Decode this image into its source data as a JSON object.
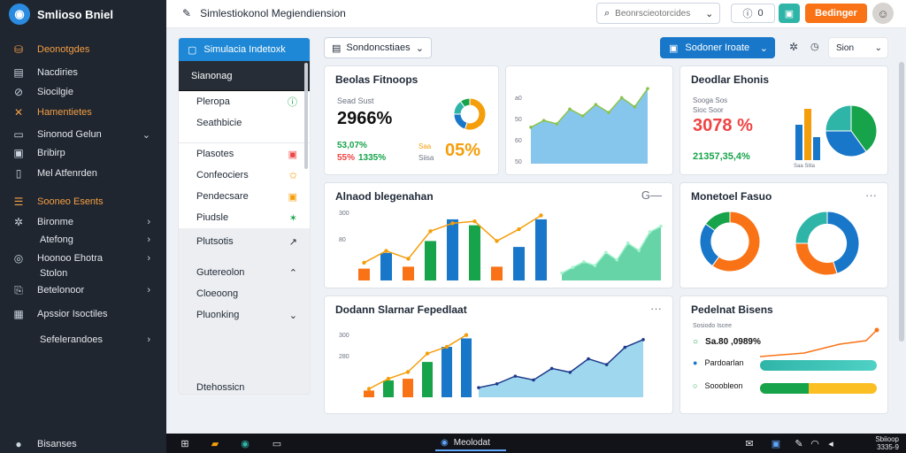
{
  "app": {
    "brand": "Smlioso Bniel",
    "title": "Simlestiokonol Megiendiension"
  },
  "sidebar": {
    "items": [
      {
        "label": "Deonotgdes",
        "icon": "database-icon"
      },
      {
        "label": "Nacdiries",
        "icon": "layers-icon"
      },
      {
        "label": "Siocilgie",
        "icon": "link-icon"
      },
      {
        "label": "Hamentietes",
        "icon": "tools-icon"
      },
      {
        "label": "Sinonod Gelun",
        "icon": "table-icon"
      },
      {
        "label": "Bribirp",
        "icon": "image-icon"
      },
      {
        "label": "Mel Atfenrden",
        "icon": "tablet-icon"
      },
      {
        "label": "Sooneo Esents",
        "icon": "list-icon"
      },
      {
        "label": "Bironme",
        "icon": "settings-icon"
      },
      {
        "label": "Atefong",
        "icon": ""
      },
      {
        "label": "Hoonoo Ehotra",
        "icon": "circle-icon"
      },
      {
        "label": "Stolon",
        "icon": ""
      },
      {
        "label": "Betelonoor",
        "icon": "bookmark-icon"
      },
      {
        "label": "Apssior Isoctiles",
        "icon": "grid-icon"
      },
      {
        "label": "Sefelerandoes",
        "icon": ""
      },
      {
        "label": "Bisanses",
        "icon": "user-icon"
      }
    ]
  },
  "topbar": {
    "search_placeholder": "Beonrscieotorcides",
    "notif_label": "0",
    "primary_label": "Bedinger"
  },
  "panel": {
    "header": "Simulacia Indetoxk",
    "dark_item": "Sianonag",
    "rows": [
      "Pleropa",
      "Seathbicie"
    ],
    "list": [
      "Plasotes",
      "Confeociers",
      "Pendecsare",
      "Piudsle"
    ],
    "grey_row": "Plutsotis",
    "bottom": [
      "Gutereolon",
      "Cloeoong",
      "Pluonking"
    ],
    "footer": "Dtehossicn"
  },
  "toolbar": {
    "filter": "Sondoncstiaes",
    "blue_select": "Sodoner Iroate",
    "right_select": "Sion"
  },
  "cards": {
    "c1": {
      "title": "Beolas Fitnoops",
      "sub": "Sead Sust",
      "big": "2966%",
      "green_line": "53,07%",
      "orange_line": "55%",
      "grey_line": "1335%",
      "orange_big": "05%",
      "small1": "Saa",
      "small2": "Siisa"
    },
    "c2": {
      "y1": "a0",
      "y2": "50",
      "y3": "60",
      "y4": "50"
    },
    "c3": {
      "title": "Deodlar Ehonis",
      "sub1": "Sooga Sos",
      "sub2": "Sioc Soor",
      "big": "3078",
      "pct": "%",
      "green": "21357,35,4%",
      "sub3": "Saa Sitia"
    },
    "c4": {
      "title": "Alnaod blegenahan",
      "y1": "300",
      "y2": "80",
      "more": "G—"
    },
    "c5": {
      "title": "Monetoel Fasuo"
    },
    "c6": {
      "title": "Dodann Slarnar Fepedlaat",
      "y1": "300",
      "y2": "280"
    },
    "c7": {
      "title": "Pedelnat Bisens",
      "sub": "Sosiodo Iscee",
      "r1": "Sa.80 ,0989%",
      "r2": "Pardoarlan",
      "r3": "Sooobleon"
    }
  },
  "chart_data": [
    {
      "type": "area",
      "series": [
        {
          "values": [
            32,
            38,
            35,
            48,
            42,
            52,
            45,
            58,
            50,
            66
          ]
        }
      ]
    },
    {
      "type": "bar",
      "values": [
        12,
        28,
        14,
        40,
        62,
        56,
        14,
        34,
        62
      ],
      "line": [
        18,
        30,
        22,
        50,
        58,
        60,
        40,
        52,
        66
      ]
    },
    {
      "type": "bar",
      "values": [
        8,
        20,
        22,
        42,
        60,
        70
      ],
      "line": [
        10,
        22,
        30,
        52,
        60,
        74
      ]
    },
    {
      "type": "area",
      "series": [
        {
          "values": [
            12,
            18,
            26,
            22,
            36,
            30,
            48,
            40,
            58,
            60
          ]
        }
      ]
    },
    {
      "type": "pie",
      "values": [
        55,
        20,
        15,
        10
      ]
    },
    {
      "type": "pie",
      "values": [
        40,
        35,
        25
      ]
    },
    {
      "type": "pie",
      "values": [
        60,
        25,
        15
      ]
    },
    {
      "type": "pie",
      "values": [
        45,
        30,
        25
      ]
    }
  ],
  "taskbar": {
    "app_label": "Meolodat",
    "time": "Sbiioop",
    "date": "3335-9"
  },
  "colors": {
    "accent": "#1e88d6",
    "orange": "#f97316",
    "sidebar": "#1f2630",
    "green": "#16a34a",
    "teal": "#2fb5a8"
  }
}
